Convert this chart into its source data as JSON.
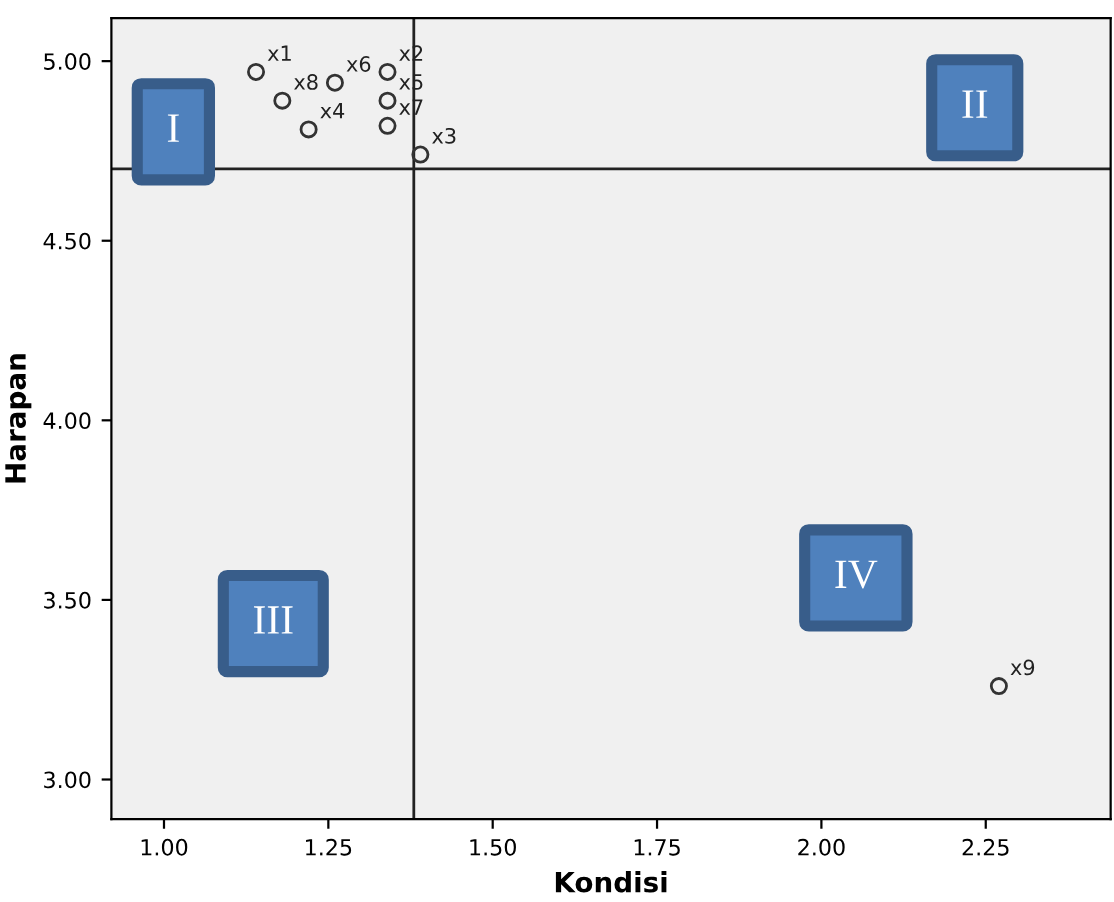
{
  "chart_data": {
    "type": "scatter",
    "xlabel": "Kondisi",
    "ylabel": "Harapan",
    "x": [
      1.14,
      1.34,
      1.39,
      1.22,
      1.34,
      1.26,
      1.34,
      1.18,
      2.27
    ],
    "values": [
      4.97,
      4.97,
      4.74,
      4.81,
      4.89,
      4.94,
      4.82,
      4.89,
      3.26
    ],
    "value_labels": [
      "x1",
      "x2",
      "x3",
      "x4",
      "x5",
      "x6",
      "x7",
      "x8",
      "x9"
    ],
    "color": "#333333",
    "marker": "circle",
    "xlim": [
      0.92,
      2.44
    ],
    "xticks": [
      {
        "value": 1.0,
        "label": "1.00"
      },
      {
        "value": 1.25,
        "label": "1.25"
      },
      {
        "value": 1.5,
        "label": "1.50"
      },
      {
        "value": 1.75,
        "label": "1.75"
      },
      {
        "value": 2.0,
        "label": "2.00"
      },
      {
        "value": 2.25,
        "label": "2.25"
      }
    ],
    "ylim": [
      2.89,
      5.12
    ],
    "yticks": [
      {
        "value": 3.0,
        "label": "3.00"
      },
      {
        "value": 3.5,
        "label": "3.50"
      },
      {
        "value": 4.0,
        "label": "4.00"
      },
      {
        "value": 4.5,
        "label": "4.50"
      },
      {
        "value": 5.0,
        "label": "5.00"
      }
    ],
    "ref_lines": [
      {
        "axis": "x",
        "value": 1.38
      },
      {
        "axis": "y",
        "value": 4.7
      }
    ],
    "annotations": [
      "I",
      "II",
      "III",
      "IV"
    ],
    "grid": false,
    "legend": false
  }
}
